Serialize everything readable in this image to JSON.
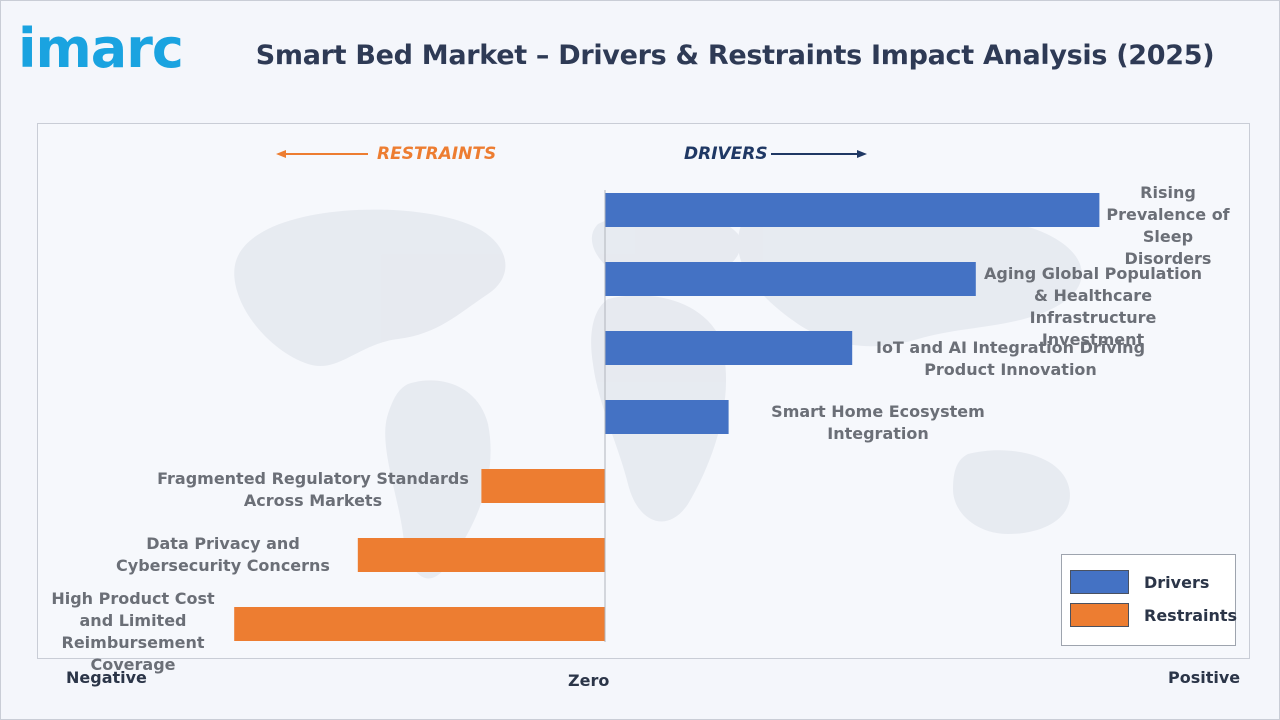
{
  "brand": {
    "logo_text": "imarc",
    "logo_color": "#1aa3e0"
  },
  "title": "Smart Bed Market – Drivers & Restraints Impact Analysis (2025)",
  "directions": {
    "restraints": "RESTRAINTS",
    "drivers": "DRIVERS"
  },
  "axis": {
    "negative": "Negative",
    "zero": "Zero",
    "positive": "Positive"
  },
  "legend": {
    "drivers": "Drivers",
    "restraints": "Restraints"
  },
  "colors": {
    "drivers": "#4472c4",
    "restraints": "#ed7d31",
    "title": "#2e3a55"
  },
  "chart_data": {
    "type": "bar",
    "orientation": "horizontal",
    "xlim": [
      -1,
      1
    ],
    "categories": [
      "Rising Prevalence of Sleep Disorders",
      "Aging Global Population & Healthcare Infrastructure Investment",
      "IoT and AI Integration Driving Product Innovation",
      "Smart Home Ecosystem Integration",
      "Fragmented Regulatory Standards Across Markets",
      "Data Privacy and Cybersecurity Concerns",
      "High Product Cost and Limited Reimbursement Coverage"
    ],
    "series": [
      {
        "name": "Drivers",
        "values": [
          0.8,
          0.6,
          0.4,
          0.2,
          null,
          null,
          null
        ]
      },
      {
        "name": "Restraints",
        "values": [
          null,
          null,
          null,
          null,
          -0.2,
          -0.4,
          -0.6
        ]
      }
    ],
    "legend_position": "bottom-right",
    "grid": false
  }
}
